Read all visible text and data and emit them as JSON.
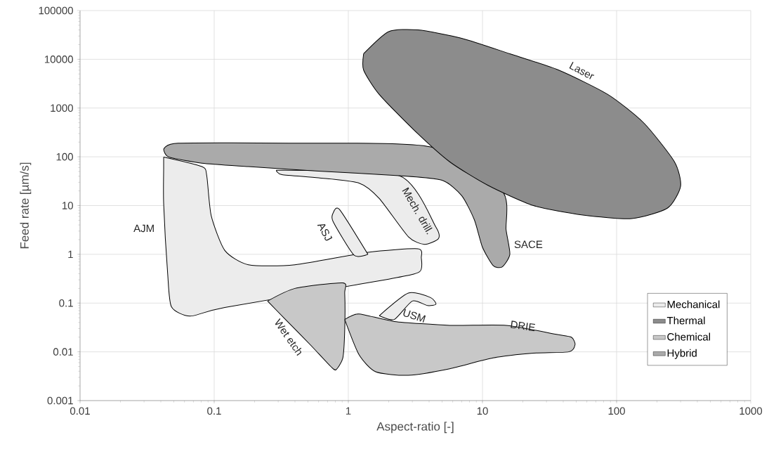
{
  "chart_data": {
    "type": "area",
    "xlabel": "Aspect-ratio [-]",
    "ylabel": "Feed rate [µm/s]",
    "log": "xy",
    "grid": true,
    "legend": "bottom right",
    "xlim": [
      0.01,
      1000
    ],
    "xticks": [
      0.01,
      0.1,
      1,
      10,
      100,
      1000
    ],
    "ylim": [
      0.001,
      100000
    ],
    "yticks": [
      0.001,
      0.01,
      0.1,
      1,
      10,
      100,
      1000,
      10000,
      100000
    ],
    "series": [
      {
        "name": "Mechanical",
        "color": "#ececec",
        "x": [
          0.042,
          0.081,
          0.088,
          0.095,
          0.12,
          0.18,
          0.4,
          1.4,
          3.3,
          3.5,
          3.4,
          2.0,
          0.12,
          0.066,
          0.048,
          0.045,
          0.042,
          0.042,
          null,
          0.29,
          2.4,
          4.5,
          4.7,
          3.7,
          2.8,
          1.7,
          1.2,
          0.6,
          0.32,
          null,
          1.4,
          1.1,
          0.77,
          0.77,
          0.86,
          null,
          1.7,
          2.8,
          4.1,
          4.5,
          3.9,
          3.0,
          2.2
        ],
        "values": [
          99,
          63,
          41,
          6.2,
          1.2,
          0.61,
          0.61,
          1.1,
          1.3,
          0.85,
          0.44,
          0.31,
          0.081,
          0.054,
          0.084,
          0.4,
          11,
          57,
          null,
          53,
          41,
          3.6,
          2.1,
          1.6,
          2.3,
          14,
          29,
          37,
          43,
          null,
          1.0,
          0.97,
          4.7,
          7.0,
          8.3,
          null,
          0.055,
          0.16,
          0.13,
          0.095,
          0.089,
          0.11,
          0.046
        ]
      },
      {
        "name": "Thermal",
        "color": "#8c8c8c",
        "x": [
          1.3,
          2.0,
          3.3,
          7.0,
          16,
          37,
          86,
          160,
          270,
          300,
          240,
          130,
          56,
          24,
          11,
          5.7,
          3.1,
          1.7,
          1.3
        ],
        "values": [
          13000,
          37000,
          40000,
          27000,
          13000,
          6000,
          1900,
          490,
          79,
          25,
          8.9,
          5.4,
          6.4,
          10,
          26,
          79,
          350,
          1900,
          6000
        ]
      },
      {
        "name": "Chemical",
        "color": "#c8c8c8",
        "x": [
          0.25,
          0.4,
          0.91,
          0.94,
          0.94,
          0.91,
          0.81,
          0.74,
          0.52,
          0.34,
          null,
          0.94,
          1.2,
          2.2,
          5.7,
          15,
          35,
          46,
          49,
          44,
          24,
          12,
          5.7,
          2.8,
          1.6,
          1.2
        ],
        "values": [
          0.11,
          0.2,
          0.26,
          0.16,
          0.028,
          0.0075,
          0.0043,
          0.005,
          0.014,
          0.046,
          null,
          0.046,
          0.06,
          0.042,
          0.035,
          0.035,
          0.023,
          0.02,
          0.014,
          0.01,
          0.0094,
          0.0075,
          0.0045,
          0.0033,
          0.0039,
          0.0088
        ]
      },
      {
        "name": "Hybrid",
        "color": "#aaaaaa",
        "x": [
          0.042,
          0.054,
          0.4,
          4.1,
          14,
          15,
          16,
          14,
          12,
          10,
          8.7,
          7.0,
          5.0,
          2.4,
          0.6,
          0.18,
          0.081,
          0.046
        ],
        "values": [
          140,
          190,
          190,
          160,
          20,
          3.2,
          1.0,
          0.55,
          0.59,
          1.4,
          5.1,
          16,
          33,
          41,
          51,
          63,
          74,
          99
        ]
      }
    ],
    "annotations": [
      "AJM",
      "ASJ",
      "Mech. drill.",
      "SACE",
      "Laser",
      "USM",
      "DRIE",
      "Wet etch"
    ]
  }
}
